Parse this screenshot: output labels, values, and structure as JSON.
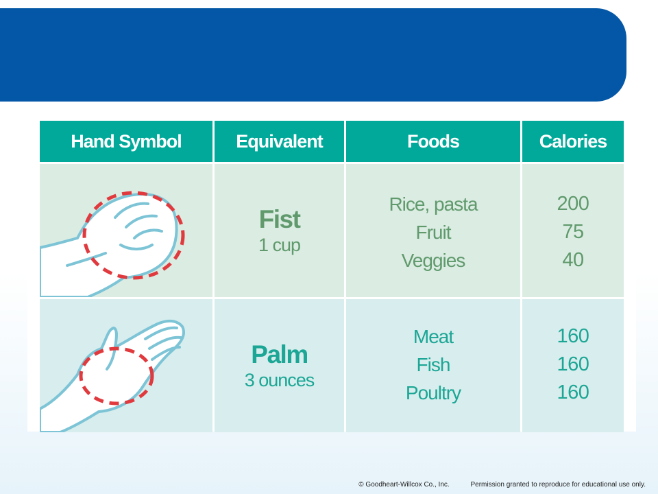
{
  "colors": {
    "banner": "#0457a6",
    "header": "#00a99a",
    "row_fist": "#dbece3",
    "row_palm": "#d8eded",
    "fist_text": "#609a6c",
    "palm_text": "#1ba695",
    "outline": "#7cc4d6",
    "dashed_circle": "#e03a3e"
  },
  "table": {
    "headers": {
      "hand_symbol": "Hand Symbol",
      "equivalent": "Equivalent",
      "foods": "Foods",
      "calories": "Calories"
    },
    "rows": [
      {
        "icon": "fist-hand-icon",
        "equivalent_name": "Fist",
        "equivalent_amount": "1 cup",
        "foods": [
          "Rice, pasta",
          "Fruit",
          "Veggies"
        ],
        "calories": [
          "200",
          "75",
          "40"
        ]
      },
      {
        "icon": "palm-hand-icon",
        "equivalent_name": "Palm",
        "equivalent_amount": "3 ounces",
        "foods": [
          "Meat",
          "Fish",
          "Poultry"
        ],
        "calories": [
          "160",
          "160",
          "160"
        ]
      }
    ]
  },
  "footer": {
    "copyright": "© Goodheart-Willcox Co., Inc.",
    "permission": "Permission granted to reproduce for educational use only."
  }
}
